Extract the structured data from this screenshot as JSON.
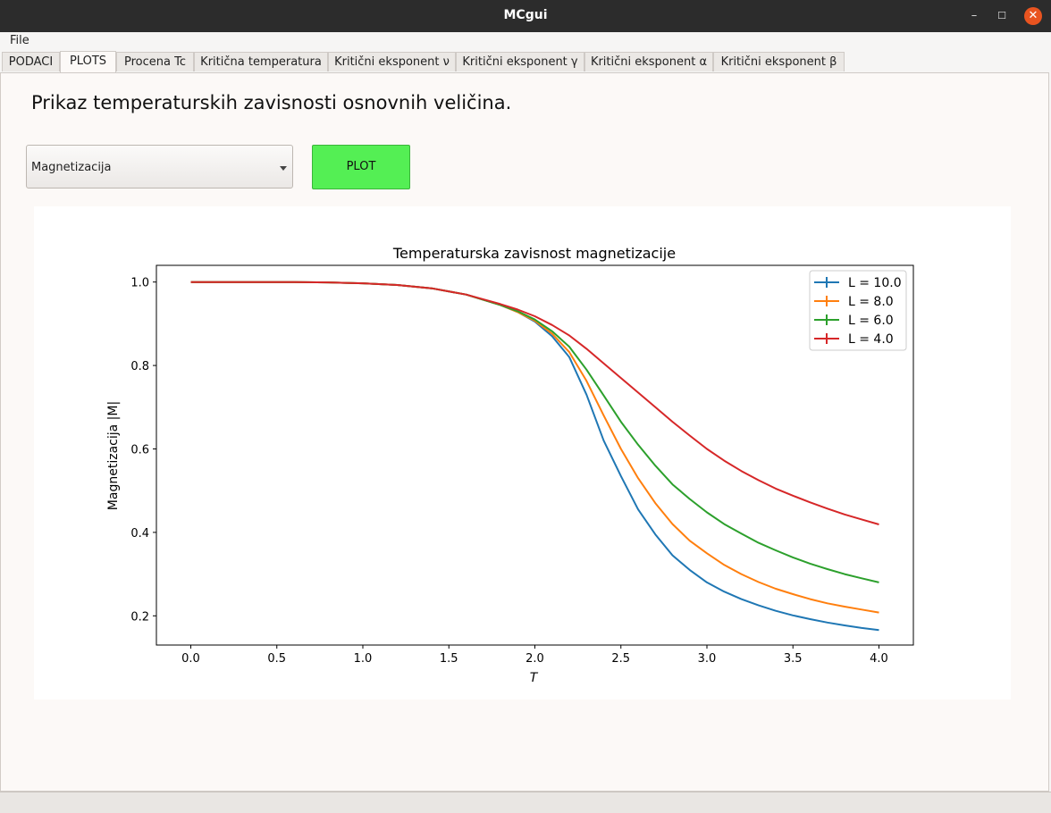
{
  "window": {
    "title": "MCgui"
  },
  "menu": {
    "file": "File"
  },
  "tabs": [
    {
      "label": "PODACI"
    },
    {
      "label": "PLOTS"
    },
    {
      "label": "Procena Tc"
    },
    {
      "label": "Kritična temperatura"
    },
    {
      "label": "Kritični eksponent ν"
    },
    {
      "label": "Kritični eksponent γ"
    },
    {
      "label": "Kritični eksponent α"
    },
    {
      "label": "Kritični eksponent  β"
    }
  ],
  "active_tab": "PLOTS",
  "main": {
    "heading": "Prikaz temperaturskih zavisnosti osnovnih veličina.",
    "quantity_select": {
      "value": "Magnetizacija"
    },
    "plot_button": "PLOT"
  },
  "colors": {
    "L10": "#1f77b4",
    "L8": "#ff7f0e",
    "L6": "#2ca02c",
    "L4": "#d62728",
    "plot_button": "#54ef54",
    "close_button": "#e95420"
  },
  "chart_data": {
    "type": "line",
    "title": "Temperaturska zavisnost magnetizacije",
    "xlabel": "T",
    "ylabel": "Magnetizacija |M|",
    "xlim": [
      -0.2,
      4.2
    ],
    "ylim": [
      0.13,
      1.04
    ],
    "xticks": [
      "0.0",
      "0.5",
      "1.0",
      "1.5",
      "2.0",
      "2.5",
      "3.0",
      "3.5",
      "4.0"
    ],
    "yticks": [
      "0.2",
      "0.4",
      "0.6",
      "0.8",
      "1.0"
    ],
    "legend_position": "top-right",
    "grid": false,
    "x": [
      0.0,
      0.2,
      0.4,
      0.6,
      0.8,
      1.0,
      1.2,
      1.4,
      1.6,
      1.8,
      1.9,
      2.0,
      2.1,
      2.2,
      2.3,
      2.4,
      2.5,
      2.6,
      2.7,
      2.8,
      2.9,
      3.0,
      3.1,
      3.2,
      3.3,
      3.4,
      3.5,
      3.6,
      3.7,
      3.8,
      3.9,
      4.0
    ],
    "series": [
      {
        "name": "L = 10.0",
        "values": [
          1.0,
          1.0,
          1.0,
          1.0,
          0.999,
          0.997,
          0.993,
          0.985,
          0.97,
          0.945,
          0.928,
          0.905,
          0.87,
          0.82,
          0.73,
          0.62,
          0.535,
          0.455,
          0.395,
          0.345,
          0.31,
          0.28,
          0.258,
          0.24,
          0.225,
          0.212,
          0.201,
          0.192,
          0.184,
          0.177,
          0.171,
          0.166
        ]
      },
      {
        "name": "L = 8.0",
        "values": [
          1.0,
          1.0,
          1.0,
          1.0,
          0.999,
          0.997,
          0.993,
          0.985,
          0.97,
          0.945,
          0.928,
          0.907,
          0.876,
          0.832,
          0.763,
          0.68,
          0.6,
          0.53,
          0.47,
          0.42,
          0.38,
          0.35,
          0.322,
          0.3,
          0.281,
          0.265,
          0.252,
          0.24,
          0.23,
          0.222,
          0.215,
          0.208
        ]
      },
      {
        "name": "L = 6.0",
        "values": [
          1.0,
          1.0,
          1.0,
          1.0,
          0.999,
          0.997,
          0.993,
          0.985,
          0.97,
          0.945,
          0.93,
          0.91,
          0.882,
          0.845,
          0.79,
          0.728,
          0.665,
          0.61,
          0.56,
          0.515,
          0.48,
          0.448,
          0.42,
          0.397,
          0.375,
          0.357,
          0.34,
          0.325,
          0.312,
          0.3,
          0.29,
          0.28
        ]
      },
      {
        "name": "L = 4.0",
        "values": [
          1.0,
          1.0,
          1.0,
          1.0,
          0.999,
          0.997,
          0.993,
          0.985,
          0.97,
          0.947,
          0.934,
          0.918,
          0.897,
          0.872,
          0.84,
          0.805,
          0.77,
          0.735,
          0.7,
          0.665,
          0.632,
          0.6,
          0.572,
          0.547,
          0.525,
          0.505,
          0.488,
          0.472,
          0.457,
          0.443,
          0.431,
          0.419
        ]
      }
    ]
  }
}
